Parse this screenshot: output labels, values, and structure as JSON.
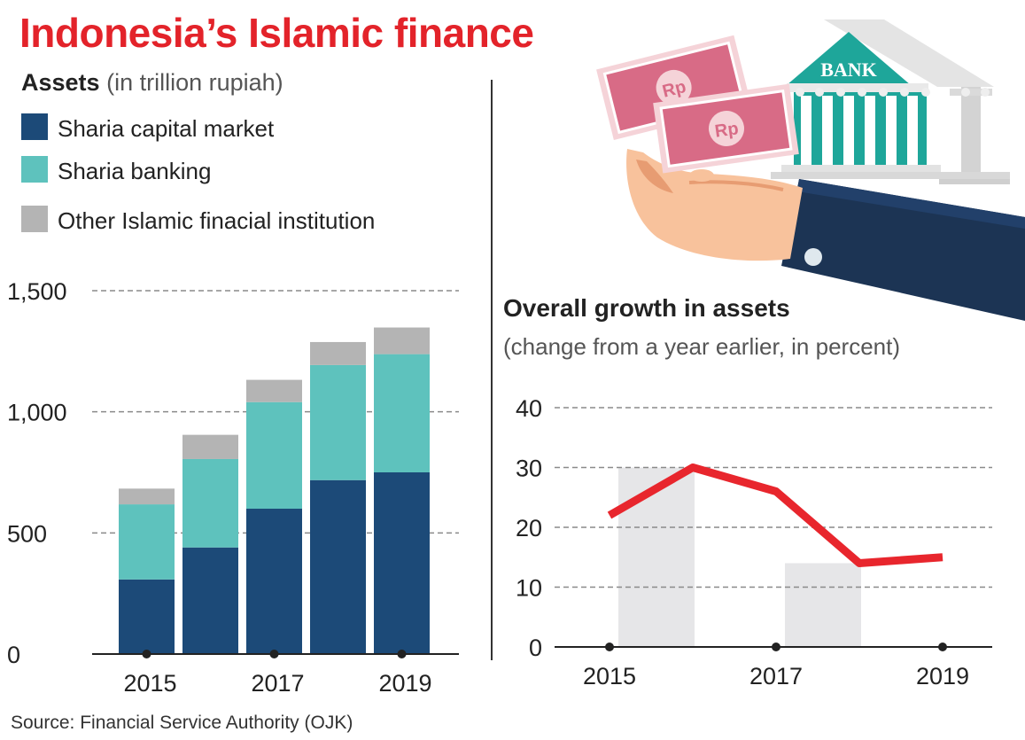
{
  "title": "Indonesia’s Islamic finance",
  "source": "Source: Financial Service Authority (OJK)",
  "illustration": {
    "bank_sign": "BANK",
    "currency": "Rp"
  },
  "assets_chart": {
    "heading": "Assets",
    "unit": "(in trillion rupiah)",
    "chart_data": {
      "type": "bar",
      "stacked": true,
      "categories": [
        "2015",
        "2016",
        "2017",
        "2018",
        "2019"
      ],
      "tick_labels_x": [
        "2015",
        "2017",
        "2019"
      ],
      "ylim": [
        0,
        1500
      ],
      "yticks": [
        0,
        500,
        1000,
        1500
      ],
      "ytick_labels": [
        "0",
        "500",
        "1,000",
        "1,500"
      ],
      "grid": true,
      "legend_position": "top-left",
      "series": [
        {
          "name": "Sharia capital market",
          "color": "#1c4a78",
          "values": [
            308,
            440,
            600,
            718,
            750
          ]
        },
        {
          "name": "Sharia banking",
          "color": "#5ec2bd",
          "values": [
            310,
            365,
            440,
            475,
            488
          ]
        },
        {
          "name": "Other Islamic finacial institution",
          "color": "#b4b4b4",
          "values": [
            65,
            100,
            92,
            95,
            110
          ]
        }
      ]
    }
  },
  "growth_chart": {
    "heading": "Overall growth in assets",
    "subheading": "(change from a year earlier, in percent)",
    "chart_data": {
      "type": "line",
      "x": [
        "2015",
        "2016",
        "2017",
        "2018",
        "2019"
      ],
      "tick_labels_x": [
        "2015",
        "2017",
        "2019"
      ],
      "ylim": [
        0,
        40
      ],
      "yticks": [
        0,
        10,
        20,
        30,
        40
      ],
      "ytick_labels": [
        "0",
        "10",
        "20",
        "30",
        "40"
      ],
      "grid": true,
      "series": [
        {
          "color": "#e8262d",
          "values": [
            22,
            30,
            26,
            14,
            15
          ]
        }
      ]
    }
  }
}
